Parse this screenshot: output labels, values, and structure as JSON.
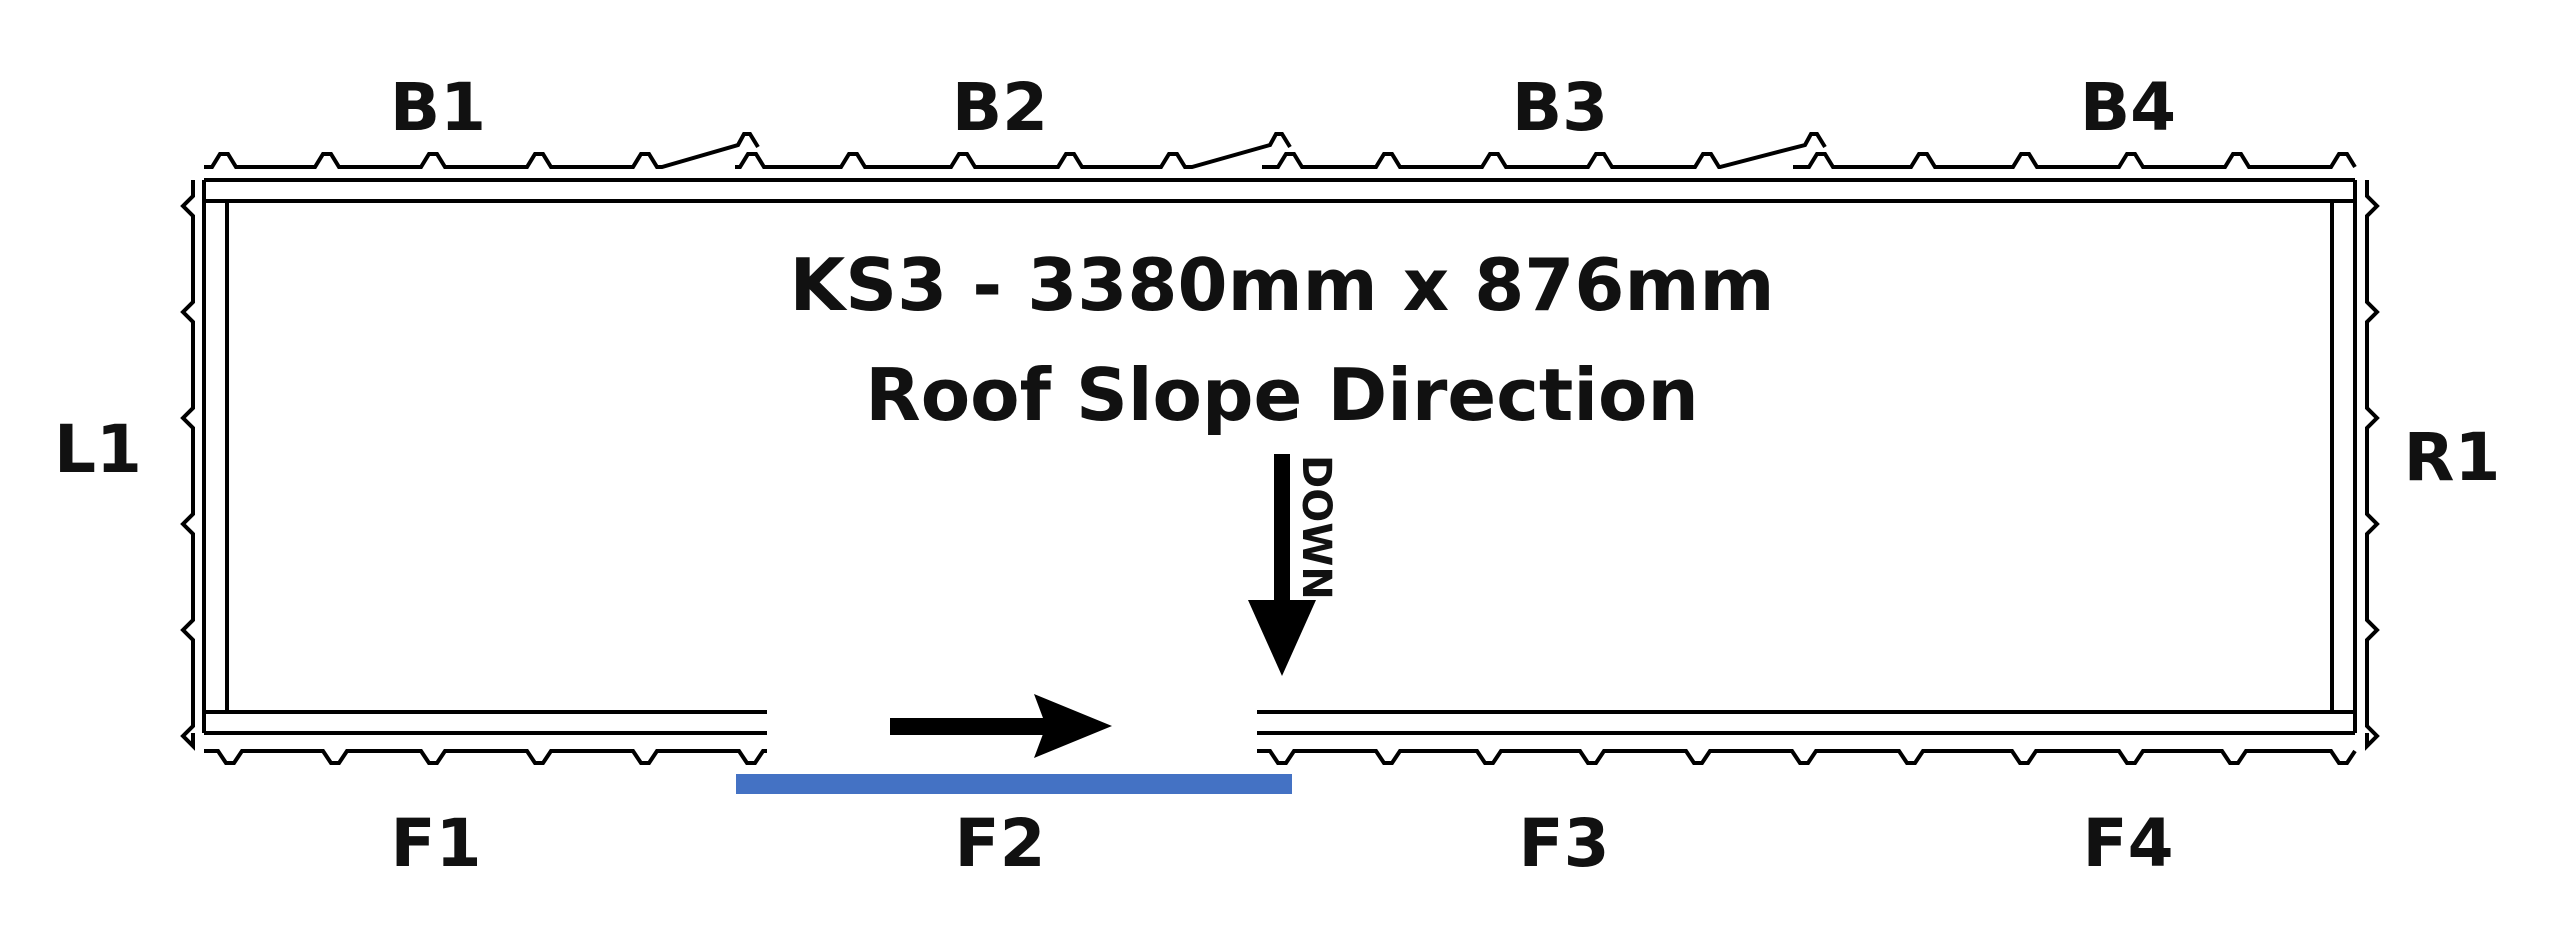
{
  "title": "KS3 - 3380mm x 876mm",
  "subtitle": "Roof Slope Direction",
  "direction_label": "DOWN",
  "edges": {
    "back": [
      "B1",
      "B2",
      "B3",
      "B4"
    ],
    "front": [
      "F1",
      "F2",
      "F3",
      "F4"
    ],
    "left": "L1",
    "right": "R1"
  },
  "highlighted_edge": "F2",
  "colors": {
    "line": "#000000",
    "highlight": "#4472C4"
  }
}
